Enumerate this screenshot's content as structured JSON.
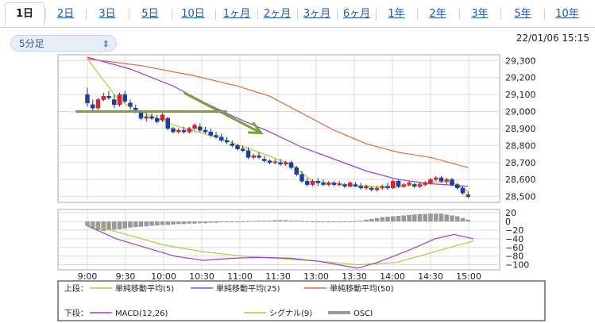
{
  "tabs": [
    {
      "label": "1日",
      "active": true
    },
    {
      "label": "2日",
      "active": false
    },
    {
      "label": "3日",
      "active": false
    },
    {
      "label": "5日",
      "active": false
    },
    {
      "label": "10日",
      "active": false
    },
    {
      "label": "1ヶ月",
      "active": false
    },
    {
      "label": "2ヶ月",
      "active": false
    },
    {
      "label": "3ヶ月",
      "active": false
    },
    {
      "label": "6ヶ月",
      "active": false
    },
    {
      "label": "1年",
      "active": false
    },
    {
      "label": "2年",
      "active": false
    },
    {
      "label": "3年",
      "active": false
    },
    {
      "label": "5年",
      "active": false
    },
    {
      "label": "10年",
      "active": false
    }
  ],
  "interval_select": {
    "value": "5分足",
    "icon": "chevron-updown-icon"
  },
  "timestamp": "22/01/06 15:15",
  "chart_data": [
    {
      "type": "candlestick",
      "panel": "price",
      "x_ticks": [
        "9:00",
        "9:30",
        "10:00",
        "10:30",
        "11:00",
        "11:30",
        "13:00",
        "13:30",
        "14:00",
        "14:30",
        "15:00"
      ],
      "y_ticks": [
        "29,300",
        "29,200",
        "29,100",
        "29,000",
        "28,900",
        "28,800",
        "28,700",
        "28,600",
        "28,500"
      ],
      "ylim": [
        28470,
        29320
      ],
      "grid": true,
      "colors": {
        "up": "#d8242c",
        "down": "#1b3ea8",
        "ma5": "#a9cf38",
        "ma25": "#9b3dcf",
        "ma50": "#e8633a",
        "annotation": "#7aa23c"
      },
      "candles": [
        [
          29100,
          29140,
          29030,
          29050
        ],
        [
          29040,
          29070,
          29000,
          29020
        ],
        [
          29020,
          29080,
          29010,
          29070
        ],
        [
          29070,
          29110,
          29060,
          29090
        ],
        [
          29090,
          29120,
          29070,
          29080
        ],
        [
          29070,
          29100,
          29020,
          29040
        ],
        [
          29040,
          29110,
          29030,
          29100
        ],
        [
          29100,
          29120,
          29050,
          29060
        ],
        [
          29050,
          29070,
          29010,
          29030
        ],
        [
          29020,
          29040,
          28990,
          29010
        ],
        [
          29000,
          29010,
          28950,
          28960
        ],
        [
          28960,
          28990,
          28940,
          28970
        ],
        [
          28970,
          28990,
          28950,
          28960
        ],
        [
          28960,
          28980,
          28930,
          28940
        ],
        [
          28950,
          28990,
          28940,
          28980
        ],
        [
          28960,
          28970,
          28890,
          28900
        ],
        [
          28900,
          28910,
          28870,
          28880
        ],
        [
          28880,
          28900,
          28870,
          28890
        ],
        [
          28890,
          28910,
          28870,
          28880
        ],
        [
          28880,
          28910,
          28870,
          28900
        ],
        [
          28900,
          28930,
          28890,
          28920
        ],
        [
          28910,
          28930,
          28880,
          28890
        ],
        [
          28890,
          28910,
          28870,
          28880
        ],
        [
          28880,
          28900,
          28850,
          28860
        ],
        [
          28860,
          28880,
          28840,
          28850
        ],
        [
          28850,
          28870,
          28820,
          28830
        ],
        [
          28830,
          28850,
          28810,
          28820
        ],
        [
          28810,
          28830,
          28790,
          28800
        ],
        [
          28800,
          28810,
          28770,
          28780
        ],
        [
          28780,
          28800,
          28760,
          28770
        ],
        [
          28770,
          28790,
          28720,
          28730
        ],
        [
          28730,
          28750,
          28720,
          28740
        ],
        [
          28740,
          28760,
          28720,
          28730
        ],
        [
          28720,
          28740,
          28700,
          28710
        ],
        [
          28710,
          28720,
          28690,
          28700
        ],
        [
          28700,
          28720,
          28690,
          28705
        ],
        [
          28700,
          28720,
          28680,
          28690
        ],
        [
          28690,
          28710,
          28680,
          28700
        ],
        [
          28700,
          28710,
          28660,
          28670
        ],
        [
          28670,
          28680,
          28620,
          28630
        ],
        [
          28630,
          28650,
          28580,
          28590
        ],
        [
          28590,
          28610,
          28560,
          28570
        ],
        [
          28570,
          28600,
          28560,
          28590
        ],
        [
          28590,
          28610,
          28560,
          28580
        ],
        [
          28580,
          28600,
          28560,
          28570
        ],
        [
          28570,
          28590,
          28560,
          28580
        ],
        [
          28580,
          28590,
          28560,
          28570
        ],
        [
          28570,
          28590,
          28560,
          28575
        ],
        [
          28570,
          28580,
          28550,
          28560
        ],
        [
          28560,
          28590,
          28555,
          28580
        ],
        [
          28570,
          28585,
          28555,
          28560
        ],
        [
          28560,
          28580,
          28540,
          28550
        ],
        [
          28550,
          28570,
          28540,
          28560
        ],
        [
          28550,
          28560,
          28530,
          28540
        ],
        [
          28540,
          28560,
          28530,
          28550
        ],
        [
          28550,
          28570,
          28540,
          28560
        ],
        [
          28560,
          28580,
          28540,
          28550
        ],
        [
          28550,
          28600,
          28545,
          28590
        ],
        [
          28590,
          28600,
          28550,
          28560
        ],
        [
          28560,
          28580,
          28550,
          28570
        ],
        [
          28570,
          28590,
          28560,
          28580
        ],
        [
          28570,
          28580,
          28550,
          28560
        ],
        [
          28560,
          28580,
          28550,
          28570
        ],
        [
          28570,
          28590,
          28560,
          28580
        ],
        [
          28580,
          28610,
          28570,
          28600
        ],
        [
          28600,
          28620,
          28590,
          28610
        ],
        [
          28610,
          28620,
          28580,
          28590
        ],
        [
          28590,
          28610,
          28570,
          28600
        ],
        [
          28600,
          28610,
          28560,
          28570
        ],
        [
          28570,
          28580,
          28540,
          28550
        ],
        [
          28550,
          28560,
          28510,
          28520
        ],
        [
          28510,
          28530,
          28490,
          28500
        ]
      ],
      "moving_averages": {
        "ma5": [
          [
            0,
            29310
          ],
          [
            6,
            29060
          ],
          [
            10,
            29000
          ],
          [
            16,
            28920
          ],
          [
            24,
            28850
          ],
          [
            32,
            28760
          ],
          [
            38,
            28690
          ],
          [
            42,
            28590
          ],
          [
            50,
            28565
          ],
          [
            58,
            28555
          ],
          [
            64,
            28585
          ],
          [
            68,
            28585
          ],
          [
            71,
            28530
          ]
        ],
        "ma25": [
          [
            0,
            29320
          ],
          [
            8,
            29250
          ],
          [
            16,
            29150
          ],
          [
            22,
            29050
          ],
          [
            28,
            28960
          ],
          [
            34,
            28880
          ],
          [
            40,
            28790
          ],
          [
            46,
            28720
          ],
          [
            52,
            28650
          ],
          [
            58,
            28600
          ],
          [
            64,
            28575
          ],
          [
            71,
            28560
          ]
        ],
        "ma50": [
          [
            0,
            29310
          ],
          [
            10,
            29270
          ],
          [
            20,
            29210
          ],
          [
            28,
            29150
          ],
          [
            34,
            29090
          ],
          [
            40,
            28990
          ],
          [
            46,
            28890
          ],
          [
            52,
            28810
          ],
          [
            58,
            28760
          ],
          [
            64,
            28730
          ],
          [
            71,
            28670
          ]
        ]
      },
      "annotations": [
        {
          "type": "horizontal",
          "from": [
            -1,
            29000
          ],
          "to": [
            26,
            29000
          ]
        },
        {
          "type": "arrow",
          "from": [
            18,
            29110
          ],
          "to": [
            32,
            28880
          ]
        }
      ]
    },
    {
      "type": "bar+line",
      "panel": "macd",
      "y_ticks": [
        "20",
        "0",
        "−20",
        "−40",
        "−60",
        "−80",
        "−100"
      ],
      "ylim": [
        -110,
        24
      ],
      "grid": true,
      "colors": {
        "osci": "#999999",
        "macd": "#9b3dcf",
        "signal": "#a9cf38"
      },
      "osci": [
        -10,
        -16,
        -20,
        -22,
        -20,
        -19,
        -18,
        -16,
        -14,
        -13,
        -12,
        -11,
        -10,
        -9,
        -8,
        -8,
        -7,
        -6,
        -6,
        -5,
        -5,
        -4,
        -4,
        -3,
        -3,
        -2,
        -2,
        -1,
        -1,
        0,
        1,
        1,
        2,
        2,
        2,
        3,
        3,
        3,
        2,
        2,
        1,
        1,
        0,
        -1,
        -1,
        -2,
        -2,
        -1,
        -1,
        0,
        1,
        2,
        4,
        6,
        8,
        10,
        11,
        12,
        13,
        14,
        15,
        16,
        17,
        17,
        18,
        18,
        18,
        16,
        14,
        12,
        8,
        4
      ],
      "macd": [
        [
          0,
          -10
        ],
        [
          6,
          -40
        ],
        [
          12,
          -60
        ],
        [
          18,
          -80
        ],
        [
          24,
          -90
        ],
        [
          30,
          -85
        ],
        [
          36,
          -83
        ],
        [
          42,
          -85
        ],
        [
          48,
          -92
        ],
        [
          52,
          -100
        ],
        [
          56,
          -108
        ],
        [
          60,
          -95
        ],
        [
          64,
          -78
        ],
        [
          68,
          -60
        ],
        [
          72,
          -40
        ],
        [
          76,
          -30
        ],
        [
          80,
          -40
        ]
      ],
      "signal": [
        [
          0,
          -5
        ],
        [
          8,
          -30
        ],
        [
          16,
          -55
        ],
        [
          24,
          -70
        ],
        [
          32,
          -80
        ],
        [
          40,
          -86
        ],
        [
          48,
          -92
        ],
        [
          56,
          -100
        ],
        [
          64,
          -95
        ],
        [
          72,
          -70
        ],
        [
          80,
          -45
        ]
      ]
    }
  ],
  "legend": {
    "upper_label": "上段：",
    "lower_label": "下段：",
    "upper_items": [
      {
        "label": "単純移動平均(5)",
        "color": "#a9cf38"
      },
      {
        "label": "単純移動平均(25)",
        "color": "#9b3dcf"
      },
      {
        "label": "単純移動平均(50)",
        "color": "#e8633a"
      }
    ],
    "lower_items": [
      {
        "label": "MACD(12,26)",
        "color": "#9b3dcf"
      },
      {
        "label": "シグナル(9)",
        "color": "#a9cf38"
      },
      {
        "label": "OSCI",
        "color": "#999999"
      }
    ]
  }
}
